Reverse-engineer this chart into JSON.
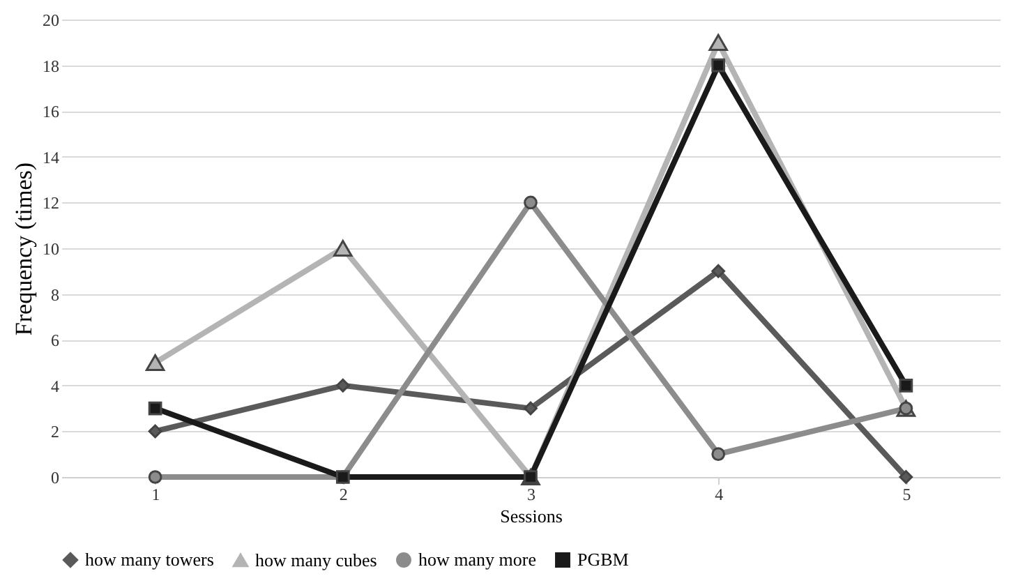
{
  "chart_data": {
    "type": "line",
    "xlabel": "Sessions",
    "ylabel": "Frequency (times)",
    "categories": [
      "1",
      "2",
      "3",
      "4",
      "5"
    ],
    "series": [
      {
        "name": "how many towers",
        "color": "#5a5a5a",
        "marker": "diamond",
        "values": [
          2,
          4,
          3,
          9,
          0
        ]
      },
      {
        "name": "how many cubes",
        "color": "#b4b4b4",
        "marker": "triangle",
        "values": [
          5,
          10,
          0,
          19,
          3
        ]
      },
      {
        "name": "how many more",
        "color": "#8c8c8c",
        "marker": "circle",
        "values": [
          0,
          0,
          12,
          1,
          3
        ]
      },
      {
        "name": "PGBM",
        "color": "#1a1a1a",
        "marker": "square",
        "values": [
          3,
          0,
          0,
          18,
          4
        ]
      }
    ],
    "ylim": [
      0,
      20
    ],
    "yticks": [
      0,
      2,
      4,
      6,
      8,
      10,
      12,
      14,
      16,
      18,
      20
    ],
    "grid": "y",
    "legend": "bottom",
    "line_style": "solid"
  }
}
